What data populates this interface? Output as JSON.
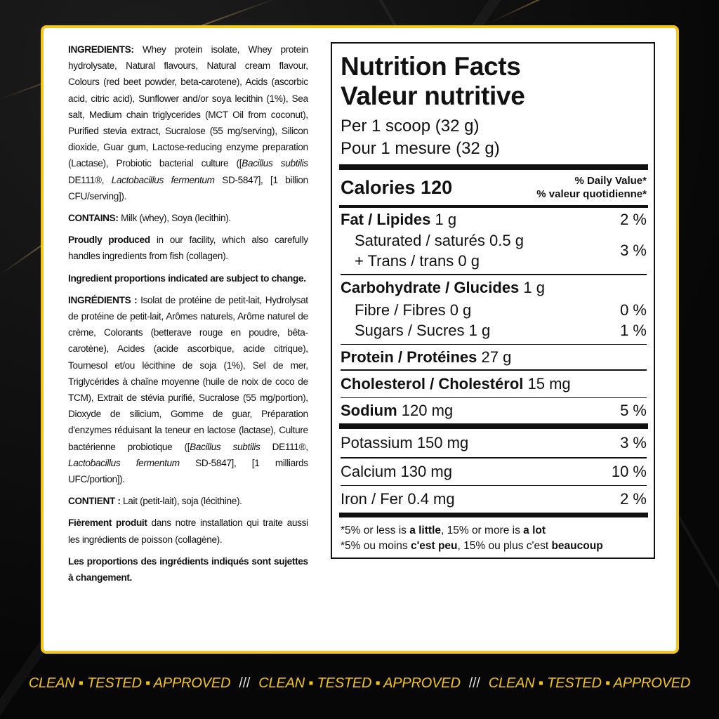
{
  "ingredients_en": {
    "label": "INGREDIENTS:",
    "text": " Whey protein isolate, Whey protein hydrolysate, Natural flavours, Natural cream flavour, Colours (red beet powder, beta-carotene), Acids (ascorbic acid, citric acid), Sunflower and/or soya lecithin (1%), Sea salt, Medium chain triglycerides (MCT Oil from coconut), Purified stevia extract, Sucralose (55 mg/serving), Silicon dioxide, Guar gum, Lactose-reducing enzyme preparation (Lactase), Probiotic bacterial culture ([",
    "italic1": "Bacillus subtilis",
    "mid": " DE111®, ",
    "italic2": "Lactobacillus fermentum",
    "end": " SD-5847], [1 billion CFU/serving])."
  },
  "contains_en": {
    "label": "CONTAINS:",
    "text": " Milk (whey), Soya (lecithin)."
  },
  "facility_en": {
    "label": "Proudly produced",
    "text": " in our facility, which also carefully handles ingredients from fish (collagen)."
  },
  "proportions_en": "Ingredient proportions indicated are subject to change.",
  "ingredients_fr": {
    "label": "INGRÉDIENTS :",
    "text": " Isolat de protéine de petit-lait, Hydrolysat de protéine de petit-lait, Arômes naturels, Arôme naturel de crème, Colorants (betterave rouge en poudre, bêta-carotène), Acides (acide ascorbique, acide citrique), Tournesol et/ou lécithine de soja (1%), Sel de mer, Triglycérides à chaîne moyenne (huile de noix de coco de TCM), Extrait de stévia purifié, Sucralose (55 mg/portion), Dioxyde de silicium, Gomme de guar, Préparation d'enzymes réduisant la teneur en lactose (lactase), Culture bactérienne probiotique ([",
    "italic1": "Bacillus subtilis",
    "mid": " DE111®, ",
    "italic2": "Lactobacillus fermentum",
    "end": " SD-5847], [1 milliards UFC/portion])."
  },
  "contains_fr": {
    "label": "CONTIENT :",
    "text": " Lait (petit-lait), soja (lécithine)."
  },
  "facility_fr": {
    "label": "Fièrement produit",
    "text": " dans notre installation qui traite aussi les ingrédients de poisson (collagène)."
  },
  "proportions_fr": "Les proportions des ingrédients indiqués sont sujettes à changement.",
  "nutrition": {
    "title_en": "Nutrition Facts",
    "title_fr": "Valeur nutritive",
    "serving_en": "Per 1 scoop (32 g)",
    "serving_fr": "Pour 1 mesure (32 g)",
    "calories_label": "Calories 120",
    "dv_en": "% Daily Value*",
    "dv_fr": "% valeur quotidienne*",
    "fat": {
      "label": "Fat / Lipides",
      "amount": " 1 g",
      "dv": "2 %"
    },
    "saturated": {
      "label": "Saturated / saturés 0.5 g",
      "trans": "+ Trans / trans 0 g",
      "dv": "3 %"
    },
    "carb": {
      "label": "Carbohydrate / Glucides",
      "amount": " 1 g"
    },
    "fibre": {
      "label": "Fibre / Fibres 0 g",
      "dv": "0 %"
    },
    "sugars": {
      "label": "Sugars / Sucres 1 g",
      "dv": "1 %"
    },
    "protein": {
      "label": "Protein / Protéines",
      "amount": " 27 g"
    },
    "cholesterol": {
      "label": "Cholesterol / Cholestérol",
      "amount": " 15 mg"
    },
    "sodium": {
      "label": "Sodium",
      "amount": " 120 mg",
      "dv": "5 %"
    },
    "potassium": {
      "label": "Potassium 150 mg",
      "dv": "3 %"
    },
    "calcium": {
      "label": "Calcium 130 mg",
      "dv": "10 %"
    },
    "iron": {
      "label": "Iron / Fer 0.4 mg",
      "dv": "2 %"
    },
    "foot_en": {
      "a": "*5% or less is ",
      "b": "a little",
      "c": ", 15% or more is ",
      "d": "a lot"
    },
    "foot_fr": {
      "a": "*5% ou moins ",
      "b": "c'est peu",
      "c": ", 15% ou plus c'est ",
      "d": "beaucoup"
    }
  },
  "banner": {
    "phrase": "CLEAN ▪ TESTED ▪ APPROVED",
    "separator": "///"
  },
  "colors": {
    "accent": "#f5c518",
    "background": "#0b0b0b"
  }
}
